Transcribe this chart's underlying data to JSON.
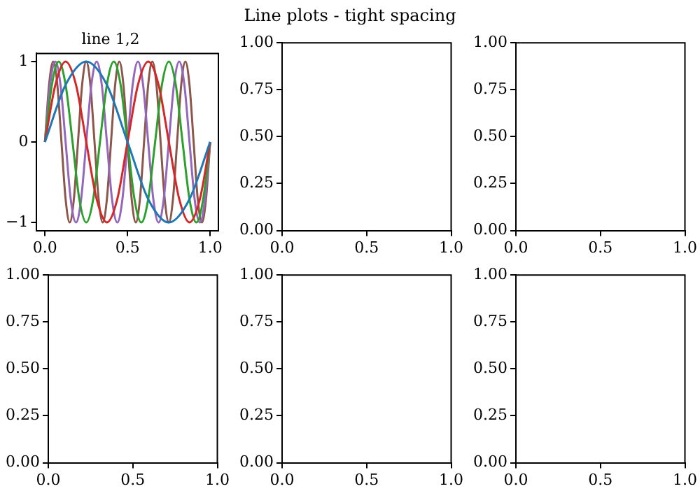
{
  "chart_data": [
    {
      "type": "line",
      "title": "line 1,2",
      "annotations": [
        "Line plots - tight spacing"
      ],
      "xlim": [
        -0.05,
        1.05
      ],
      "ylim": [
        -1.1,
        1.1
      ],
      "xticks": [
        {
          "value": 0,
          "label": "0.0"
        },
        {
          "value": 0.5,
          "label": "0.5"
        },
        {
          "value": 1,
          "label": "1.0"
        }
      ],
      "yticks": [
        {
          "value": -1,
          "label": "−1"
        },
        0,
        1
      ],
      "series": [
        {
          "color": "#1f77b4",
          "x": [
            0,
            0.125,
            0.25,
            0.375,
            0.5,
            0.625,
            0.75,
            0.875,
            1
          ],
          "values": [
            0,
            0.71,
            1,
            0.71,
            0,
            -0.71,
            -1,
            -0.71,
            0
          ]
        },
        {
          "color": "#d62728",
          "x": [
            0,
            0.063,
            0.125,
            0.188,
            0.25,
            0.313,
            0.375,
            0.438,
            0.5,
            0.563,
            0.625,
            0.688,
            0.75,
            0.813,
            0.875,
            0.938,
            1
          ],
          "values": [
            0,
            0.71,
            1,
            0.71,
            0,
            -0.71,
            -1,
            -0.71,
            0,
            0.71,
            1,
            0.71,
            0,
            -0.71,
            -1,
            -0.71,
            0
          ]
        },
        {
          "color": "#2ca02c",
          "x": [
            0,
            0.042,
            0.083,
            0.125,
            0.167,
            0.208,
            0.25,
            0.292,
            0.333,
            0.375,
            0.417,
            0.458,
            0.5,
            0.542,
            0.583,
            0.625,
            0.667,
            0.708,
            0.75,
            0.792,
            0.833,
            0.875,
            0.917,
            0.958,
            1
          ],
          "values": [
            0,
            0.71,
            1,
            0.71,
            0,
            -0.71,
            -1,
            -0.71,
            0,
            0.71,
            1,
            0.71,
            0,
            -0.71,
            -1,
            -0.71,
            0,
            0.71,
            1,
            0.71,
            0,
            -0.71,
            -1,
            -0.71,
            0
          ]
        },
        {
          "color": "#9467bd",
          "x": [
            0,
            0.031,
            0.063,
            0.094,
            0.125,
            0.156,
            0.188,
            0.219,
            0.25,
            0.281,
            0.313,
            0.344,
            0.375,
            0.406,
            0.438,
            0.469,
            0.5,
            0.531,
            0.563,
            0.594,
            0.625,
            0.656,
            0.688,
            0.719,
            0.75,
            0.781,
            0.813,
            0.844,
            0.875,
            0.906,
            0.938,
            0.969,
            1
          ],
          "values": [
            0,
            0.71,
            1,
            0.71,
            0,
            -0.71,
            -1,
            -0.71,
            0,
            0.71,
            1,
            0.71,
            0,
            -0.71,
            -1,
            -0.71,
            0,
            0.71,
            1,
            0.71,
            0,
            -0.71,
            -1,
            -0.71,
            0,
            0.71,
            1,
            0.71,
            0,
            -0.71,
            -1,
            -0.71,
            0
          ]
        },
        {
          "color": "#8c564b",
          "x": [
            0,
            0.025,
            0.05,
            0.075,
            0.1,
            0.125,
            0.15,
            0.175,
            0.2,
            0.225,
            0.25,
            0.275,
            0.3,
            0.325,
            0.35,
            0.375,
            0.4,
            0.425,
            0.45,
            0.475,
            0.5,
            0.525,
            0.55,
            0.575,
            0.6,
            0.625,
            0.65,
            0.675,
            0.7,
            0.725,
            0.75,
            0.775,
            0.8,
            0.825,
            0.85,
            0.875,
            0.9,
            0.925,
            0.95,
            0.975,
            1
          ],
          "values": [
            0,
            0.71,
            1,
            0.71,
            0,
            -0.71,
            -1,
            -0.71,
            0,
            0.71,
            1,
            0.71,
            0,
            -0.71,
            -1,
            -0.71,
            0,
            0.71,
            1,
            0.71,
            0,
            -0.71,
            -1,
            -0.71,
            0,
            0.71,
            1,
            0.71,
            0,
            -0.71,
            -1,
            -0.71,
            0,
            0.71,
            1,
            0.71,
            0,
            -0.71,
            -1,
            -0.71,
            0
          ]
        }
      ]
    },
    {
      "type": "line",
      "xlim": [
        0,
        1
      ],
      "ylim": [
        0,
        1
      ],
      "xticks": [
        {
          "value": 0,
          "label": "0.0"
        },
        {
          "value": 0.5,
          "label": "0.5"
        },
        {
          "value": 1,
          "label": "1.0"
        }
      ],
      "yticks": [
        {
          "value": 0,
          "label": "0.00"
        },
        {
          "value": 0.25,
          "label": "0.25"
        },
        {
          "value": 0.5,
          "label": "0.50"
        },
        {
          "value": 0.75,
          "label": "0.75"
        },
        {
          "value": 1,
          "label": "1.00"
        }
      ]
    },
    {
      "type": "line",
      "xlim": [
        0,
        1
      ],
      "ylim": [
        0,
        1
      ],
      "xticks": [
        {
          "value": 0,
          "label": "0.0"
        },
        {
          "value": 0.5,
          "label": "0.5"
        },
        {
          "value": 1,
          "label": "1.0"
        }
      ],
      "yticks": [
        {
          "value": 0,
          "label": "0.00"
        },
        {
          "value": 0.25,
          "label": "0.25"
        },
        {
          "value": 0.5,
          "label": "0.50"
        },
        {
          "value": 0.75,
          "label": "0.75"
        },
        {
          "value": 1,
          "label": "1.00"
        }
      ]
    },
    {
      "type": "line",
      "xlim": [
        0,
        1
      ],
      "ylim": [
        0,
        1
      ],
      "xticks": [
        {
          "value": 0,
          "label": "0.0"
        },
        {
          "value": 0.5,
          "label": "0.5"
        },
        {
          "value": 1,
          "label": "1.0"
        }
      ],
      "yticks": [
        {
          "value": 0,
          "label": "0.00"
        },
        {
          "value": 0.25,
          "label": "0.25"
        },
        {
          "value": 0.5,
          "label": "0.50"
        },
        {
          "value": 0.75,
          "label": "0.75"
        },
        {
          "value": 1,
          "label": "1.00"
        }
      ]
    },
    {
      "type": "line",
      "xlim": [
        0,
        1
      ],
      "ylim": [
        0,
        1
      ],
      "xticks": [
        {
          "value": 0,
          "label": "0.0"
        },
        {
          "value": 0.5,
          "label": "0.5"
        },
        {
          "value": 1,
          "label": "1.0"
        }
      ],
      "yticks": [
        {
          "value": 0,
          "label": "0.00"
        },
        {
          "value": 0.25,
          "label": "0.25"
        },
        {
          "value": 0.5,
          "label": "0.50"
        },
        {
          "value": 0.75,
          "label": "0.75"
        },
        {
          "value": 1,
          "label": "1.00"
        }
      ]
    },
    {
      "type": "line",
      "xlim": [
        0,
        1
      ],
      "ylim": [
        0,
        1
      ],
      "xticks": [
        {
          "value": 0,
          "label": "0.0"
        },
        {
          "value": 0.5,
          "label": "0.5"
        },
        {
          "value": 1,
          "label": "1.0"
        }
      ],
      "yticks": [
        {
          "value": 0,
          "label": "0.00"
        },
        {
          "value": 0.25,
          "label": "0.25"
        },
        {
          "value": 0.5,
          "label": "0.50"
        },
        {
          "value": 0.75,
          "label": "0.75"
        },
        {
          "value": 1,
          "label": "1.00"
        }
      ]
    }
  ]
}
